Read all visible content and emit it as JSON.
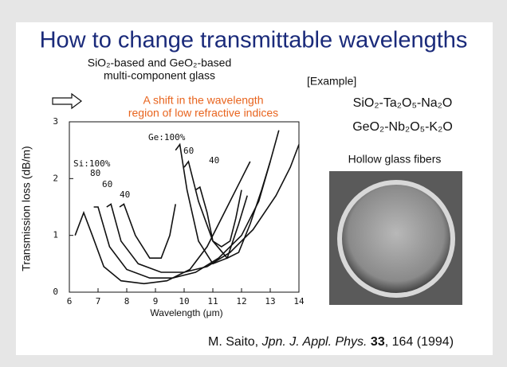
{
  "slide": {
    "title": "How to change transmittable wavelengths",
    "glass_line1": "SiO₂-based and GeO₂-based",
    "glass_line2": "multi-component glass",
    "shift_line1": "A shift in the wavelength",
    "shift_line2": "region of low refractive indices",
    "example_label": "[Example]",
    "example1": "SiO₂-Ta₂O₅-Na₂O",
    "example2": "GeO₂-Nb₂O₅-K₂O",
    "photo_caption": "Hollow glass fibers",
    "citation": [
      "M. Saito, ",
      "Jpn. J. Appl. Phys.",
      " 33",
      ", 164 (1994)"
    ]
  },
  "chart_data": {
    "type": "line",
    "x_label": "Wavelength  (μm)",
    "y_label": "Transmission loss  (dB/m)",
    "xlim": [
      6,
      14
    ],
    "ylim": [
      0,
      3
    ],
    "xticks": [
      6,
      7,
      8,
      9,
      10,
      11,
      12,
      13,
      14
    ],
    "yticks": [
      0,
      1,
      2,
      3
    ],
    "series": [
      {
        "name": "Si:100%",
        "color": "#111111",
        "x": [
          6.2,
          6.5,
          6.8,
          7.2,
          7.8,
          8.6,
          9.4,
          10.2,
          10.8,
          11.4,
          12.0,
          12.3
        ],
        "values": [
          1.0,
          1.4,
          1.0,
          0.45,
          0.2,
          0.15,
          0.2,
          0.4,
          0.8,
          1.4,
          2.0,
          2.3
        ]
      },
      {
        "name": "80",
        "color": "#111111",
        "x": [
          6.85,
          7.0,
          7.4,
          8.0,
          8.8,
          9.6,
          10.4,
          11.2,
          12.0,
          12.6,
          13.0,
          13.3
        ],
        "values": [
          1.5,
          1.5,
          0.8,
          0.4,
          0.25,
          0.25,
          0.35,
          0.6,
          1.0,
          1.6,
          2.3,
          2.85
        ]
      },
      {
        "name": "60",
        "color": "#111111",
        "x": [
          7.3,
          7.45,
          7.8,
          8.4,
          9.2,
          10.0,
          10.8,
          11.6,
          12.4,
          13.2,
          13.7,
          14.0
        ],
        "values": [
          1.5,
          1.55,
          0.9,
          0.5,
          0.35,
          0.35,
          0.45,
          0.7,
          1.1,
          1.7,
          2.2,
          2.6
        ]
      },
      {
        "name": "40",
        "color": "#111111",
        "x": [
          7.75,
          7.9,
          8.3,
          8.8,
          9.2,
          9.5,
          9.7
        ],
        "values": [
          1.5,
          1.55,
          1.0,
          0.6,
          0.6,
          1.0,
          1.55
        ]
      },
      {
        "name": "Ge:100%",
        "color": "#111111",
        "x": [
          9.7,
          9.85,
          10.1,
          10.5,
          11.0,
          11.5,
          11.9,
          12.2
        ],
        "values": [
          2.5,
          2.6,
          1.8,
          0.9,
          0.5,
          0.6,
          1.2,
          1.7
        ]
      },
      {
        "name": "60",
        "color": "#111111",
        "x": [
          10.0,
          10.15,
          10.5,
          11.0,
          11.5,
          11.9,
          12.3,
          12.7,
          13.0
        ],
        "values": [
          2.2,
          2.3,
          1.6,
          0.9,
          0.6,
          0.7,
          1.2,
          1.8,
          2.3
        ]
      },
      {
        "name": "40",
        "color": "#111111",
        "x": [
          10.4,
          10.55,
          10.8,
          11.0,
          11.3,
          11.6,
          11.8,
          12.0
        ],
        "values": [
          1.8,
          1.85,
          1.4,
          0.9,
          0.8,
          0.9,
          1.3,
          1.8
        ]
      }
    ]
  }
}
